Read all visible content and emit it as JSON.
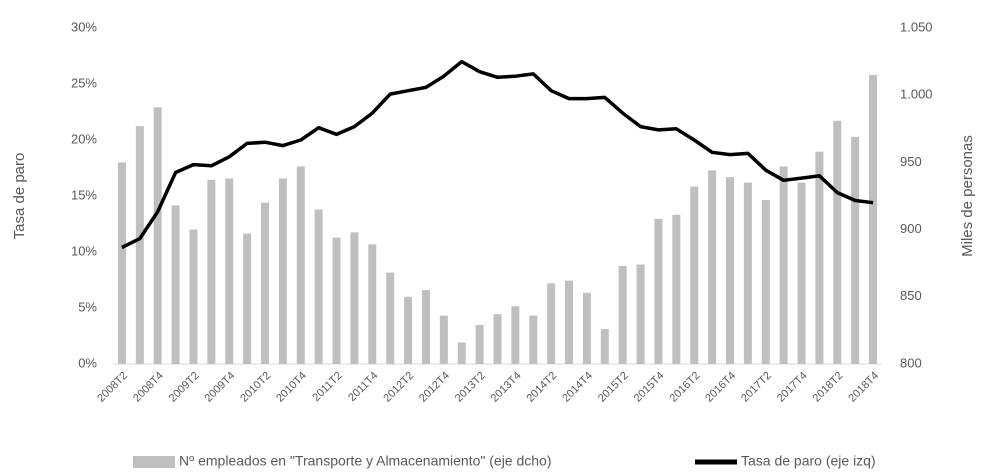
{
  "chart_data": {
    "type": "bar_line",
    "categories": [
      "2008T2",
      null,
      "2008T4",
      null,
      "2009T2",
      null,
      "2009T4",
      null,
      "2010T2",
      null,
      "2010T4",
      null,
      "2011T2",
      null,
      "2011T4",
      null,
      "2012T2",
      null,
      "2012T4",
      null,
      "2013T2",
      null,
      "2013T4",
      null,
      "2014T2",
      null,
      "2014T4",
      null,
      "2015T2",
      null,
      "2015T4",
      null,
      "2016T2",
      null,
      "2016T4",
      null,
      "2017T2",
      null,
      "2017T4",
      null,
      "2018T2",
      null,
      "2018T4"
    ],
    "series": [
      {
        "name": "Nº empleados en \"Transporte y Almacenamiento\" (eje dcho)",
        "type": "bar",
        "axis": "y2",
        "color": "#bfbfbf",
        "values": [
          950,
          977,
          991,
          918,
          900,
          937,
          938,
          897,
          920,
          938,
          947,
          915,
          894,
          898,
          889,
          868,
          850,
          855,
          836,
          816,
          829,
          837,
          843,
          836,
          860,
          862,
          853,
          826,
          873,
          874,
          908,
          911,
          932,
          944,
          939,
          935,
          922,
          947,
          935,
          958,
          981,
          969,
          1015
        ]
      },
      {
        "name": "Tasa de paro (eje izq)",
        "type": "line",
        "axis": "y",
        "color": "#000000",
        "values": [
          10.4,
          11.2,
          13.6,
          17.1,
          17.8,
          17.7,
          18.5,
          19.7,
          19.8,
          19.5,
          20.0,
          21.1,
          20.5,
          21.2,
          22.4,
          24.1,
          24.4,
          24.7,
          25.7,
          27.0,
          26.1,
          25.6,
          25.7,
          25.9,
          24.4,
          23.7,
          23.7,
          23.8,
          22.4,
          21.2,
          20.9,
          21.0,
          20.0,
          18.9,
          18.7,
          18.8,
          17.3,
          16.4,
          16.6,
          16.8,
          15.3,
          14.6,
          14.4
        ]
      }
    ],
    "ylabel": "Tasa de paro",
    "y2label": "Miles de personas",
    "ylim": [
      0,
      30
    ],
    "yticks": [
      {
        "value": 0,
        "label": "0%"
      },
      {
        "value": 5,
        "label": "5%"
      },
      {
        "value": 10,
        "label": "10%"
      },
      {
        "value": 15,
        "label": "15%"
      },
      {
        "value": 20,
        "label": "20%"
      },
      {
        "value": 25,
        "label": "25%"
      },
      {
        "value": 30,
        "label": "30%"
      }
    ],
    "y2lim": [
      800,
      1050
    ],
    "y2ticks": [
      800,
      850,
      900,
      950,
      {
        "value": 1000,
        "label": "1.000"
      },
      {
        "value": 1050,
        "label": "1.050"
      }
    ],
    "legend": "bottom"
  }
}
